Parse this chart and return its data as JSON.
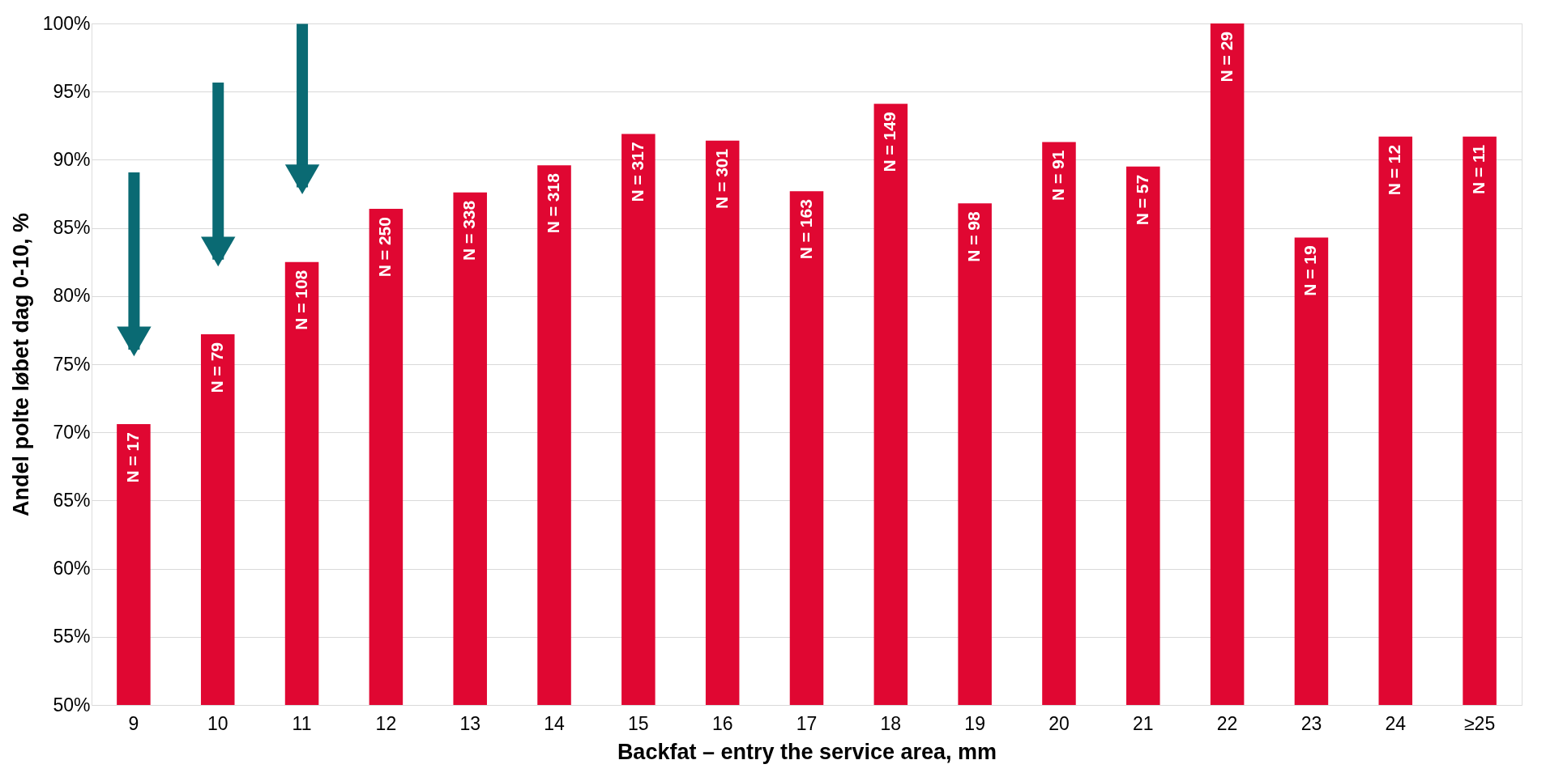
{
  "chart_data": {
    "type": "bar",
    "xlabel": "Backfat – entry the service area, mm",
    "ylabel": "Andel polte løbet dag 0-10, %",
    "categories": [
      "9",
      "10",
      "11",
      "12",
      "13",
      "14",
      "15",
      "16",
      "17",
      "18",
      "19",
      "20",
      "21",
      "22",
      "23",
      "24",
      "≥25"
    ],
    "values": [
      70.6,
      77.2,
      82.5,
      86.4,
      87.6,
      89.6,
      91.9,
      91.4,
      87.7,
      94.1,
      86.8,
      91.3,
      89.5,
      100,
      84.3,
      91.7,
      91.7
    ],
    "annotations": [
      {
        "text": "N = 17",
        "x": "9",
        "y": 70.6
      },
      {
        "text": "N = 79",
        "x": "10",
        "y": 77.2
      },
      {
        "text": "N = 108",
        "x": "11",
        "y": 82.5
      },
      {
        "text": "N = 250",
        "x": "12",
        "y": 86.4
      },
      {
        "text": "N = 338",
        "x": "13",
        "y": 87.6
      },
      {
        "text": "N = 318",
        "x": "14",
        "y": 89.6
      },
      {
        "text": "N = 317",
        "x": "15",
        "y": 91.9
      },
      {
        "text": "N = 301",
        "x": "16",
        "y": 91.4
      },
      {
        "text": "N = 163",
        "x": "17",
        "y": 87.7
      },
      {
        "text": "N = 149",
        "x": "18",
        "y": 94.1
      },
      {
        "text": "N = 98",
        "x": "19",
        "y": 86.8
      },
      {
        "text": "N = 91",
        "x": "20",
        "y": 91.3
      },
      {
        "text": "N = 57",
        "x": "21",
        "y": 89.5
      },
      {
        "text": "N = 29",
        "x": "22",
        "y": 100
      },
      {
        "text": "N = 19",
        "x": "23",
        "y": 84.3
      },
      {
        "text": "N = 12",
        "x": "24",
        "y": 91.7
      },
      {
        "text": "N = 11",
        "x": "≥25",
        "y": 91.7
      }
    ],
    "color": "#e00732",
    "ylim": [
      50,
      100
    ],
    "yticks": [
      {
        "value": 50,
        "label": "50%"
      },
      {
        "value": 55,
        "label": "55%"
      },
      {
        "value": 60,
        "label": "60%"
      },
      {
        "value": 65,
        "label": "65%"
      },
      {
        "value": 70,
        "label": "70%"
      },
      {
        "value": 75,
        "label": "75%"
      },
      {
        "value": 80,
        "label": "80%"
      },
      {
        "value": 85,
        "label": "85%"
      },
      {
        "value": 90,
        "label": "90%"
      },
      {
        "value": 95,
        "label": "95%"
      },
      {
        "value": 100,
        "label": "100%"
      }
    ],
    "grid": "y"
  }
}
